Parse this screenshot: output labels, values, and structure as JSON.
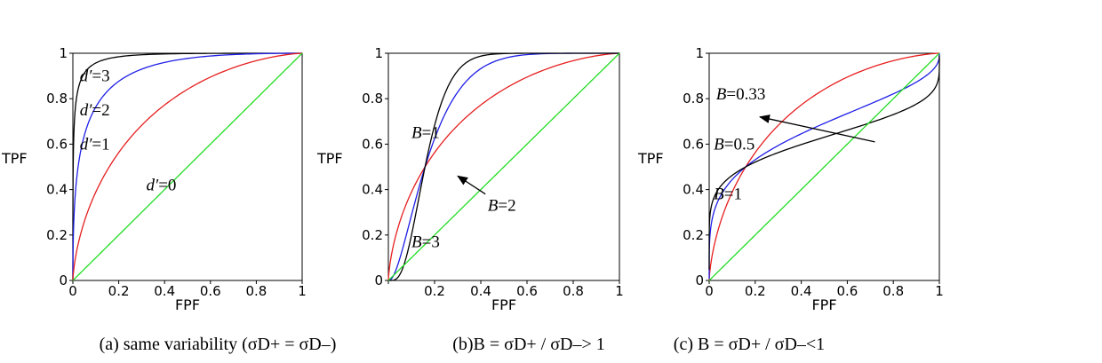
{
  "chart_data": [
    {
      "type": "line",
      "xlabel": "FPF",
      "ylabel": "TPF",
      "xlim": [
        0,
        1
      ],
      "ylim": [
        0,
        1
      ],
      "x_ticks": [
        "0",
        "0.2",
        "0.4",
        "0.6",
        "0.8",
        "1"
      ],
      "y_ticks": [
        "0",
        "0.2",
        "0.4",
        "0.6",
        "0.8",
        "1"
      ],
      "caption": "(a) same variability (σD+ = σD–)",
      "series": [
        {
          "color": "#000000",
          "model": "binormal",
          "a": 3,
          "b": 1
        },
        {
          "color": "#1f1fe6",
          "model": "binormal",
          "a": 2,
          "b": 1
        },
        {
          "color": "#e61f1f",
          "model": "binormal",
          "a": 1,
          "b": 1
        },
        {
          "color": "#22dd22",
          "model": "binormal",
          "a": 0,
          "b": 1
        }
      ],
      "annotations": [
        {
          "text": "d′=3",
          "x": 0.03,
          "y": 0.9
        },
        {
          "text": "d′=2",
          "x": 0.03,
          "y": 0.75
        },
        {
          "text": "d′=1",
          "x": 0.03,
          "y": 0.6
        },
        {
          "text": "d′=0",
          "x": 0.32,
          "y": 0.42
        }
      ]
    },
    {
      "type": "line",
      "xlabel": "FPF",
      "ylabel": "TPF",
      "xlim": [
        0,
        1
      ],
      "ylim": [
        0,
        1
      ],
      "x_ticks": [
        "",
        "0.2",
        "0.4",
        "0.6",
        "0.8",
        "1"
      ],
      "y_ticks": [
        "0",
        "0.2",
        "0.4",
        "0.6",
        "0.8",
        "1"
      ],
      "caption": "(b)B = σD+ / σD–> 1",
      "series": [
        {
          "color": "#e61f1f",
          "model": "binormal",
          "a": 1,
          "b": 1
        },
        {
          "color": "#1f1fe6",
          "model": "binormal",
          "a": 2,
          "b": 2
        },
        {
          "color": "#000000",
          "model": "binormal",
          "a": 3,
          "b": 3
        },
        {
          "color": "#22dd22",
          "model": "binormal",
          "a": 0,
          "b": 1
        }
      ],
      "annotations": [
        {
          "text": "B=1",
          "x": 0.1,
          "y": 0.65
        },
        {
          "text": "B=2",
          "x": 0.43,
          "y": 0.33
        },
        {
          "text": "B=3",
          "x": 0.1,
          "y": 0.17
        }
      ],
      "arrows": [
        {
          "from": [
            0.42,
            0.38
          ],
          "to": [
            0.3,
            0.46
          ]
        }
      ]
    },
    {
      "type": "line",
      "xlabel": "FPF",
      "ylabel": "TPF",
      "xlim": [
        0,
        1
      ],
      "ylim": [
        0,
        1
      ],
      "x_ticks": [
        "0",
        "0.2",
        "0.4",
        "0.6",
        "0.8",
        "1"
      ],
      "y_ticks": [
        "0",
        "0.2",
        "0.4",
        "0.6",
        "0.8",
        "1"
      ],
      "caption": "(c) B = σD+ / σD–<1",
      "series": [
        {
          "color": "#e61f1f",
          "model": "binormal",
          "a": 1,
          "b": 1
        },
        {
          "color": "#1f1fe6",
          "model": "binormal",
          "a": 0.5,
          "b": 0.5
        },
        {
          "color": "#000000",
          "model": "binormal",
          "a": 0.333,
          "b": 0.333
        },
        {
          "color": "#22dd22",
          "model": "binormal",
          "a": 0,
          "b": 1
        }
      ],
      "annotations": [
        {
          "text": "B=0.33",
          "x": 0.03,
          "y": 0.82
        },
        {
          "text": "B=0.5",
          "x": 0.02,
          "y": 0.6
        },
        {
          "text": "B=1",
          "x": 0.02,
          "y": 0.38
        }
      ],
      "arrows": [
        {
          "from": [
            0.72,
            0.61
          ],
          "to": [
            0.22,
            0.72
          ]
        }
      ]
    }
  ]
}
